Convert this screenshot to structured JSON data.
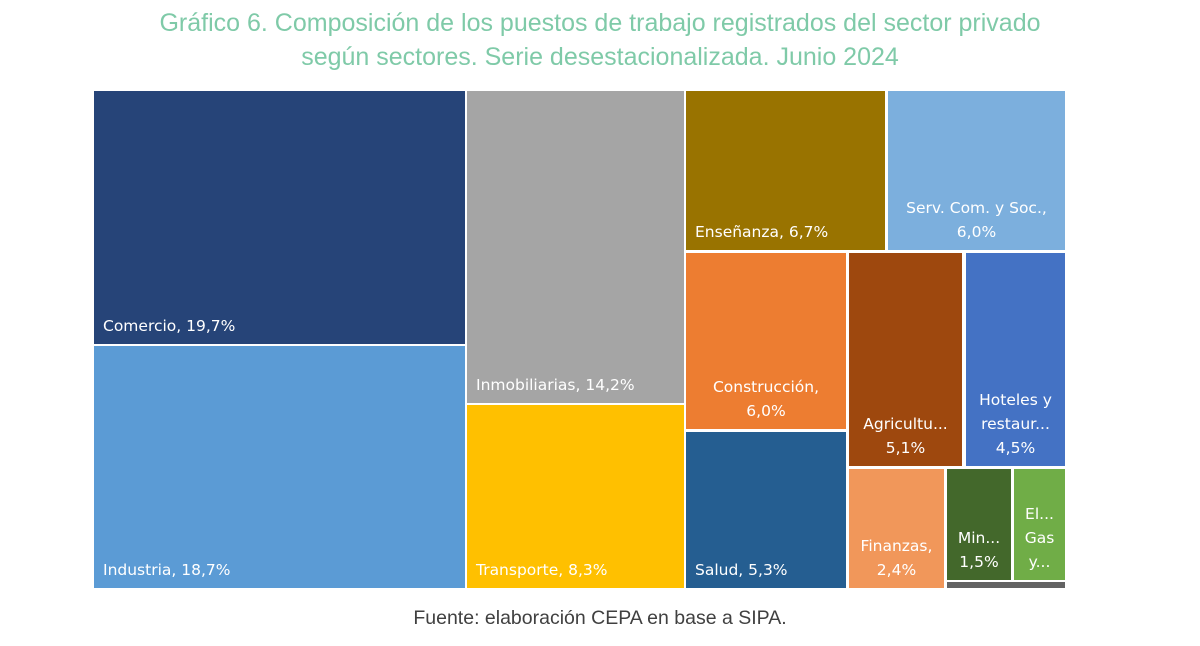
{
  "title_lines": [
    "Gráfico 6. Composición de los puestos de trabajo registrados del sector privado",
    "según sectores. Serie desestacionalizada. Junio 2024"
  ],
  "source": "Fuente: elaboración CEPA en base a SIPA.",
  "chart_data": {
    "type": "treemap",
    "title": "Gráfico 6. Composición de los puestos de trabajo registrados del sector privado según sectores. Serie desestacionalizada. Junio 2024",
    "unit": "%",
    "items": [
      {
        "id": "comercio",
        "name": "Comercio",
        "value": 19.7,
        "label": [
          "Comercio, 19,7%"
        ],
        "color": "#264478"
      },
      {
        "id": "industria",
        "name": "Industria",
        "value": 18.7,
        "label": [
          "Industria, 18,7%"
        ],
        "color": "#5b9bd5"
      },
      {
        "id": "inmobiliarias",
        "name": "Inmobiliarias",
        "value": 14.2,
        "label": [
          "Inmobiliarias, 14,2%"
        ],
        "color": "#a5a5a5"
      },
      {
        "id": "transporte",
        "name": "Transporte",
        "value": 8.3,
        "label": [
          "Transporte, 8,3%"
        ],
        "color": "#ffc000"
      },
      {
        "id": "ensenanza",
        "name": "Enseñanza",
        "value": 6.7,
        "label": [
          "Enseñanza, 6,7%"
        ],
        "color": "#997300"
      },
      {
        "id": "serv-com-soc",
        "name": "Serv. Com. y Soc.",
        "value": 6.0,
        "label": [
          "Serv. Com. y Soc.,",
          "6,0%"
        ],
        "color": "#7cafdd"
      },
      {
        "id": "construccion",
        "name": "Construcción",
        "value": 6.0,
        "label": [
          "Construcción,",
          "6,0%"
        ],
        "color": "#ed7d31"
      },
      {
        "id": "salud",
        "name": "Salud",
        "value": 5.3,
        "label": [
          "Salud, 5,3%"
        ],
        "color": "#255e91"
      },
      {
        "id": "agricultura",
        "name": "Agricultura",
        "value": 5.1,
        "label": [
          "Agricultu...",
          "5,1%"
        ],
        "color": "#9e480e"
      },
      {
        "id": "hoteles",
        "name": "Hoteles y restaurantes",
        "value": 4.5,
        "label": [
          "Hoteles y",
          "restaur...",
          "4,5%"
        ],
        "color": "#4472c4"
      },
      {
        "id": "finanzas",
        "name": "Finanzas",
        "value": 2.4,
        "label": [
          "Finanzas,",
          "2,4%"
        ],
        "color": "#f1975a"
      },
      {
        "id": "mineria",
        "name": "Minería",
        "value": 1.5,
        "label": [
          "Min...",
          "1,5%"
        ],
        "color": "#43682b"
      },
      {
        "id": "electricidad",
        "name": "Electricidad, Gas y Agua",
        "value": null,
        "label": [
          "El...",
          "Gas",
          "y..."
        ],
        "color": "#70ad47"
      },
      {
        "id": "otros",
        "name": "",
        "value": null,
        "label": [],
        "color": "#636363"
      }
    ]
  }
}
